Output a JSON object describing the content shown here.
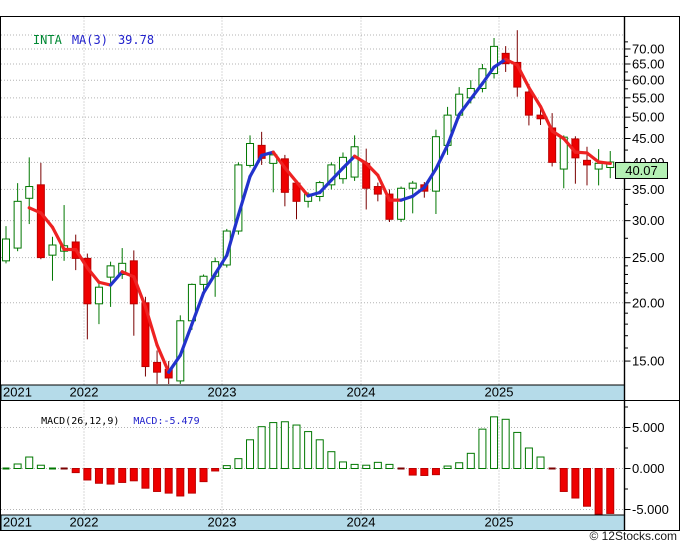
{
  "window": {
    "title": "(INTA)"
  },
  "legend": {
    "symbol": "INTA",
    "ma_label": "MA(3)",
    "ma_value": "39.78"
  },
  "price_axis": {
    "tick_labels": [
      "70.00",
      "65.00",
      "60.00",
      "55.00",
      "50.00",
      "45.00",
      "40.00",
      "35.00",
      "30.00",
      "25.00",
      "20.00",
      "15.00"
    ],
    "tick_values": [
      70,
      65,
      60,
      55,
      50,
      45,
      40,
      35,
      30,
      25,
      20,
      15
    ],
    "minor_tick_values": [
      72.5,
      67.5,
      62.5,
      57.5,
      52.5,
      47.5,
      42.5,
      37.5,
      32.5,
      27.5,
      24,
      23,
      22,
      21,
      19,
      18,
      17,
      16
    ],
    "current_price_box": {
      "value": "40.07"
    }
  },
  "macd_panel": {
    "indicator_label": "MACD(26,12,9)",
    "current_value_label": "MACD:-5.479",
    "tick_labels": [
      "5.000",
      "0.000",
      "-5.000"
    ],
    "tick_values": [
      5,
      0,
      -5
    ],
    "minor_tick_values": [
      7.5,
      2.5,
      -2.5
    ]
  },
  "x_axis": {
    "year_labels": [
      "2021",
      "2022",
      "2023",
      "2024",
      "2025"
    ]
  },
  "footer": {
    "copyright": "© 12Stocks.com"
  },
  "colors": {
    "candle_up_stroke": "#007700",
    "candle_down_fill": "#ee0000",
    "candle_down_stroke": "#bb0000",
    "wick_up": "#007700",
    "wick_down": "#7a0000",
    "ma_up": "#2233cc",
    "ma_down": "#ee2222",
    "grid": "#b3b3b3",
    "axis_strip_bg": "#b5dbe9",
    "price_badge_bg": "#b4f0b4",
    "macd_pos_stroke": "#007700",
    "macd_neg_fill": "#ee0000",
    "legend_symbol_text": "#008833",
    "legend_ma_text": "#2222cc",
    "macd_value_text": "#2222cc"
  },
  "chart_data": [
    {
      "type": "candlestick",
      "title": "INTA monthly candlestick with MA(3)",
      "y_scale": "log",
      "ylim": [
        13.4,
        79
      ],
      "grid_prices": [
        75,
        70,
        65,
        60,
        55,
        50,
        45,
        40,
        35,
        30,
        25,
        20,
        15
      ],
      "ma_period": 3,
      "ma_last_value": 39.78,
      "last_close": 40.07,
      "months": [
        "2021-06",
        "2021-07",
        "2021-08",
        "2021-09",
        "2021-10",
        "2021-11",
        "2021-12",
        "2022-01",
        "2022-02",
        "2022-03",
        "2022-04",
        "2022-05",
        "2022-06",
        "2022-07",
        "2022-08",
        "2022-09",
        "2022-10",
        "2022-11",
        "2022-12",
        "2023-01",
        "2023-02",
        "2023-03",
        "2023-04",
        "2023-05",
        "2023-06",
        "2023-07",
        "2023-08",
        "2023-09",
        "2023-10",
        "2023-11",
        "2023-12",
        "2024-01",
        "2024-02",
        "2024-03",
        "2024-04",
        "2024-05",
        "2024-06",
        "2024-07",
        "2024-08",
        "2024-09",
        "2024-10",
        "2024-11",
        "2024-12",
        "2025-01",
        "2025-02",
        "2025-03",
        "2025-04",
        "2025-05",
        "2025-06",
        "2025-07",
        "2025-08",
        "2025-09",
        "2025-10"
      ],
      "ohlc": [
        [
          24.6,
          29.2,
          24.3,
          27.4
        ],
        [
          26.2,
          36.1,
          25.8,
          33.0
        ],
        [
          33.5,
          41.0,
          29.5,
          35.5
        ],
        [
          35.8,
          39.9,
          24.8,
          25.0
        ],
        [
          25.3,
          27.7,
          22.3,
          26.6
        ],
        [
          25.8,
          32.4,
          24.6,
          26.5
        ],
        [
          27.0,
          28.0,
          23.5,
          24.9
        ],
        [
          24.9,
          25.5,
          16.7,
          19.9
        ],
        [
          19.9,
          22.0,
          18.0,
          21.6
        ],
        [
          22.7,
          24.5,
          19.6,
          24.0
        ],
        [
          23.0,
          26.2,
          22.5,
          24.3
        ],
        [
          24.6,
          25.9,
          17.0,
          19.9
        ],
        [
          20.0,
          20.6,
          13.9,
          14.6
        ],
        [
          14.9,
          15.8,
          13.4,
          14.2
        ],
        [
          14.4,
          15.0,
          13.3,
          13.8
        ],
        [
          13.6,
          18.8,
          13.4,
          18.3
        ],
        [
          18.3,
          22.0,
          17.5,
          21.9
        ],
        [
          21.9,
          23.0,
          21.0,
          22.8
        ],
        [
          22.8,
          25.0,
          20.6,
          24.5
        ],
        [
          24.1,
          28.8,
          23.8,
          28.5
        ],
        [
          28.5,
          40.0,
          28.0,
          39.5
        ],
        [
          39.4,
          45.7,
          39.0,
          43.9
        ],
        [
          43.5,
          46.5,
          39.5,
          40.8
        ],
        [
          39.8,
          42.0,
          34.5,
          41.5
        ],
        [
          40.7,
          41.5,
          32.2,
          34.5
        ],
        [
          36.1,
          36.5,
          30.2,
          33.0
        ],
        [
          33.0,
          34.5,
          32.0,
          34.2
        ],
        [
          33.8,
          36.5,
          33.0,
          36.2
        ],
        [
          35.8,
          40.0,
          35.0,
          39.5
        ],
        [
          36.9,
          42.0,
          36.0,
          41.0
        ],
        [
          37.2,
          45.7,
          36.5,
          43.2
        ],
        [
          39.8,
          42.8,
          31.7,
          35.2
        ],
        [
          35.5,
          36.2,
          33.0,
          34.2
        ],
        [
          34.2,
          35.0,
          29.8,
          30.2
        ],
        [
          30.2,
          35.5,
          29.8,
          35.2
        ],
        [
          35.2,
          36.5,
          31.1,
          36.1
        ],
        [
          35.8,
          36.3,
          33.6,
          34.7
        ],
        [
          34.7,
          47.0,
          31.0,
          45.4
        ],
        [
          43.5,
          52.6,
          41.5,
          50.5
        ],
        [
          50.5,
          58.0,
          49.6,
          56.0
        ],
        [
          55.0,
          60.0,
          53.5,
          57.6
        ],
        [
          57.6,
          65.0,
          56.5,
          63.5
        ],
        [
          62.0,
          73.9,
          60.5,
          70.9
        ],
        [
          68.5,
          71.0,
          62.5,
          65.1
        ],
        [
          65.5,
          76.8,
          55.3,
          58.0
        ],
        [
          56.6,
          58.9,
          48.0,
          50.5
        ],
        [
          50.5,
          53.0,
          48.1,
          49.6
        ],
        [
          47.4,
          51.0,
          39.2,
          40.0
        ],
        [
          38.7,
          45.7,
          35.2,
          45.3
        ],
        [
          44.9,
          45.5,
          36.0,
          40.9
        ],
        [
          40.4,
          43.2,
          35.7,
          39.5
        ],
        [
          38.7,
          42.7,
          35.7,
          39.8
        ],
        [
          39.0,
          42.3,
          37.0,
          40.07
        ]
      ]
    },
    {
      "type": "bar",
      "title": "MACD(26,12,9) histogram",
      "ylim": [
        -5.8,
        8.2
      ],
      "grid_values": [
        5,
        0,
        -5
      ],
      "last_value": -5.479,
      "values": [
        0,
        0.55,
        1.4,
        0.4,
        0.05,
        -0.2,
        -0.5,
        -1.4,
        -1.8,
        -1.9,
        -1.7,
        -1.5,
        -2.4,
        -2.8,
        -3.0,
        -3.35,
        -3.0,
        -1.6,
        -0.3,
        0.35,
        1.2,
        3.5,
        5.1,
        5.6,
        5.7,
        5.3,
        4.5,
        3.5,
        2.05,
        0.8,
        0.5,
        0.4,
        0.75,
        0.5,
        -0.15,
        -0.8,
        -0.85,
        -0.75,
        0.3,
        0.7,
        1.85,
        4.8,
        6.3,
        6.0,
        4.4,
        2.5,
        1.4,
        -0.2,
        -2.8,
        -3.6,
        -4.6,
        -5.7,
        -5.479
      ]
    }
  ]
}
